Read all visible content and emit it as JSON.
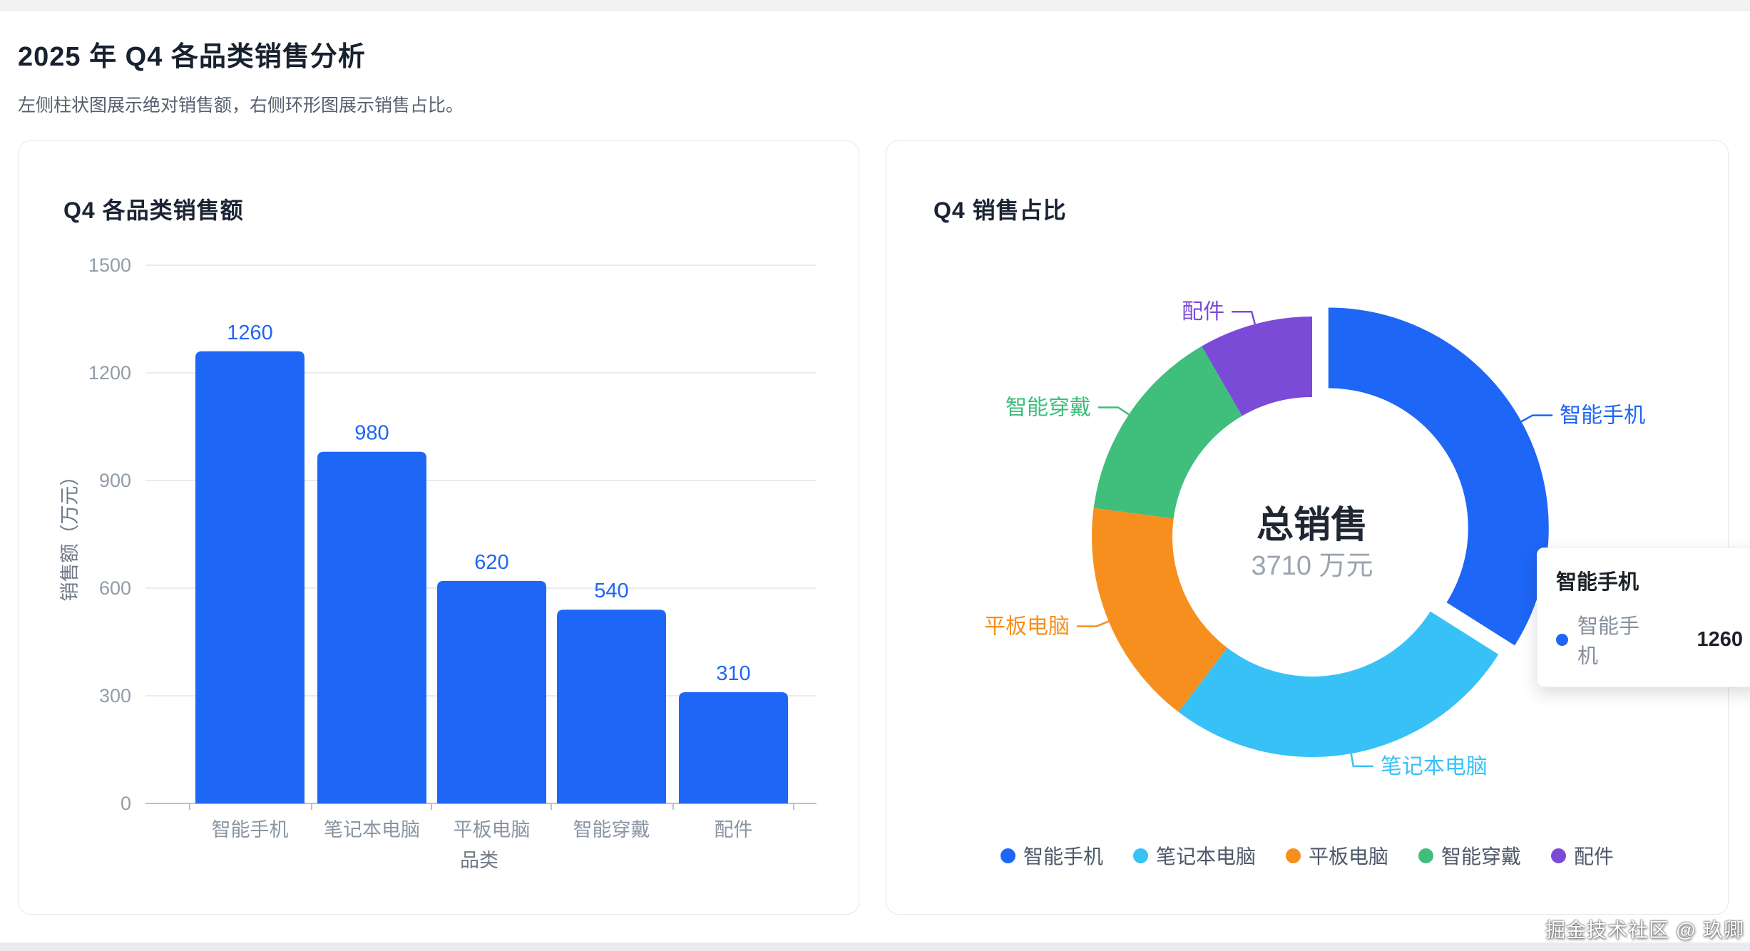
{
  "page": {
    "title": "2025 年 Q4 各品类销售分析",
    "subtitle": "左侧柱状图展示绝对销售额，右侧环形图展示销售占比。",
    "watermark": "掘金技术社区 @ 玖卿"
  },
  "colors": {
    "blue": "#1e66f5",
    "cyan": "#38c1f6",
    "orange": "#f78f1e",
    "green": "#3fbe7c",
    "purple": "#7b4bd8",
    "grid_line": "#e9ebee",
    "axis_line": "#bbc0c9",
    "tick_text": "#939ca9",
    "axis_name_text": "#6f7987"
  },
  "chart_data": [
    {
      "type": "bar",
      "title": "Q4 各品类销售额",
      "categories": [
        "智能手机",
        "笔记本电脑",
        "平板电脑",
        "智能穿戴",
        "配件"
      ],
      "values": [
        1260,
        980,
        620,
        540,
        310
      ],
      "xlabel": "品类",
      "ylabel": "销售额（万元）",
      "ylim": [
        0,
        1500
      ],
      "yticks": [
        0,
        300,
        600,
        900,
        1200,
        1500
      ],
      "bar_color": "#1e66f5",
      "grid": true,
      "value_labels_shown": true
    },
    {
      "type": "pie",
      "title": "Q4 销售占比",
      "series": [
        {
          "name": "智能手机",
          "value": 1260,
          "color": "#1e66f5",
          "selected": true
        },
        {
          "name": "笔记本电脑",
          "value": 980,
          "color": "#38c1f6",
          "selected": false
        },
        {
          "name": "平板电脑",
          "value": 620,
          "color": "#f78f1e",
          "selected": false
        },
        {
          "name": "智能穿戴",
          "value": 540,
          "color": "#3fbe7c",
          "selected": false
        },
        {
          "name": "配件",
          "value": 310,
          "color": "#7b4bd8",
          "selected": false
        }
      ],
      "center_label": "总销售",
      "center_value_text": "3710 万元",
      "legend_position": "bottom",
      "legend": [
        "智能手机",
        "笔记本电脑",
        "平板电脑",
        "智能穿戴",
        "配件"
      ],
      "tooltip": {
        "title": "智能手机",
        "series_name": "智能手机",
        "value": "1260"
      }
    }
  ]
}
